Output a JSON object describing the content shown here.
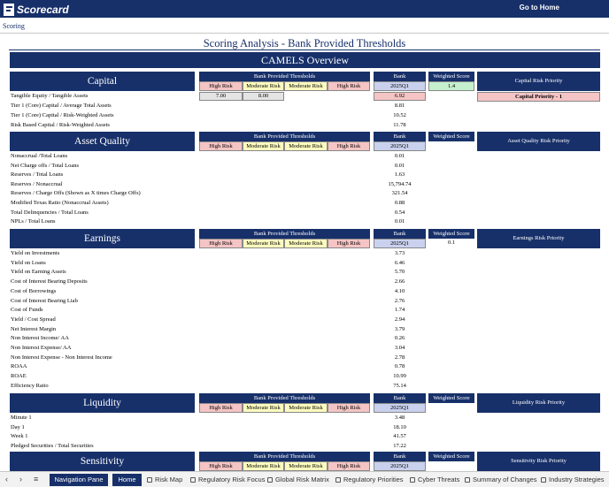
{
  "app": {
    "logo_text": "Scorecard",
    "goto_home": "Go to Home"
  },
  "breadcrumb": "Scoring",
  "page_title": "Scoring Analysis - Bank Provided Thresholds",
  "overview_title": "CAMELS Overview",
  "headers": {
    "thresholds": "Bank Provided Thresholds",
    "high_risk": "High Risk",
    "moderate_risk": "Moderate Risk",
    "bank": "Bank",
    "period": "2025Q1",
    "weighted_score": "Weighted Score"
  },
  "sections": {
    "capital": {
      "title": "Capital",
      "risk_priority_header": "Capital Risk Priority",
      "weighted_score": "1.4",
      "risk_priority_value": "Capital Priority - 1",
      "thresholds": {
        "high": "7.00",
        "moderate": "8.00"
      },
      "metrics": [
        {
          "label": "Tangible Equity / Tangible Assets",
          "value": "6.92"
        },
        {
          "label": "Tier 1 (Core) Capital / Average Total Assets",
          "value": "8.81"
        },
        {
          "label": "Tier 1 (Core) Capital / Risk-Weighted Assets",
          "value": "10.52"
        },
        {
          "label": "Risk Based Capital / Risk-Weighted Assets",
          "value": "11.78"
        }
      ]
    },
    "asset_quality": {
      "title": "Asset Quality",
      "risk_priority_header": "Asset Quality Risk Priority",
      "weighted_score": "",
      "metrics": [
        {
          "label": "Nonaccrual /Total Loans",
          "value": "0.01"
        },
        {
          "label": "Net Charge offs / Total Loans",
          "value": "0.01"
        },
        {
          "label": "Reserves / Total Loans",
          "value": "1.63"
        },
        {
          "label": "Reserves / Nonaccrual",
          "value": "15,794.74"
        },
        {
          "label": "Reserves / Charge Offs (Shown as X times Charge Offs)",
          "value": "321.54"
        },
        {
          "label": "Modified Texas Ratio (Nonaccrual Assets)",
          "value": "0.88"
        },
        {
          "label": "Total Delinquencies / Total Loans",
          "value": "0.54"
        },
        {
          "label": "NPLs / Total Loans",
          "value": "0.01"
        }
      ]
    },
    "earnings": {
      "title": "Earnings",
      "risk_priority_header": "Earnings Risk Priority",
      "weighted_score": "0.1",
      "metrics": [
        {
          "label": "Yield on Investments",
          "value": "3.73"
        },
        {
          "label": "Yield on Loans",
          "value": "6.46"
        },
        {
          "label": "Yield on Earning Assets",
          "value": "5.70"
        },
        {
          "label": "Cost of Interest Bearing Deposits",
          "value": "2.66"
        },
        {
          "label": "Cost of Borrowings",
          "value": "4.10"
        },
        {
          "label": "Cost of Interest Bearing Liab",
          "value": "2.76"
        },
        {
          "label": "Cost of Funds",
          "value": "1.74"
        },
        {
          "label": "Yield / Cost Spread",
          "value": "2.94"
        },
        {
          "label": "Net Interest Margin",
          "value": "3.79"
        },
        {
          "label": "Non Interest Income/ AA",
          "value": "0.26"
        },
        {
          "label": "Non Interest Expense/ AA",
          "value": "3.04"
        },
        {
          "label": "Non Interest Expense - Non Interest Income",
          "value": "2.78"
        },
        {
          "label": "ROAA",
          "value": "0.78"
        },
        {
          "label": "ROAE",
          "value": "10.99"
        },
        {
          "label": "Efficiency Ratio",
          "value": "75.14"
        }
      ]
    },
    "liquidity": {
      "title": "Liquidity",
      "risk_priority_header": "Liquidity Risk Priority",
      "weighted_score": "",
      "metrics": [
        {
          "label": "Minute 1",
          "value": "3.48"
        },
        {
          "label": "Day 1",
          "value": "18.10"
        },
        {
          "label": "Week 1",
          "value": "41.57"
        },
        {
          "label": "Pledged Securities / Total Securities",
          "value": "17.22"
        }
      ]
    },
    "sensitivity": {
      "title": "Sensitivity",
      "risk_priority_header": "Sensitivity Risk Priority",
      "weighted_score": ""
    }
  },
  "tabs": [
    {
      "label": "Navigation Pane",
      "style": "dark"
    },
    {
      "label": "Home",
      "style": "dark"
    },
    {
      "label": "Risk Map",
      "icon": "sheet-icon"
    },
    {
      "label": "Regulatory Risk Focus",
      "icon": "sheet-icon"
    },
    {
      "label": "Global Risk Matrix",
      "icon": "sheet-icon"
    },
    {
      "label": "Regulatory Priorities",
      "icon": "sheet-icon"
    },
    {
      "label": "Cyber Threats",
      "icon": "sheet-icon"
    },
    {
      "label": "Summary of Changes",
      "icon": "sheet-icon"
    },
    {
      "label": "Industry Strategies",
      "icon": "sheet-icon"
    }
  ],
  "colors": {
    "navy": "#17306a",
    "high_risk": "#f5c4c4",
    "moderate_risk": "#fcfbbf",
    "bank_period": "#c9d1ee",
    "weighted_green": "#c6efce"
  }
}
